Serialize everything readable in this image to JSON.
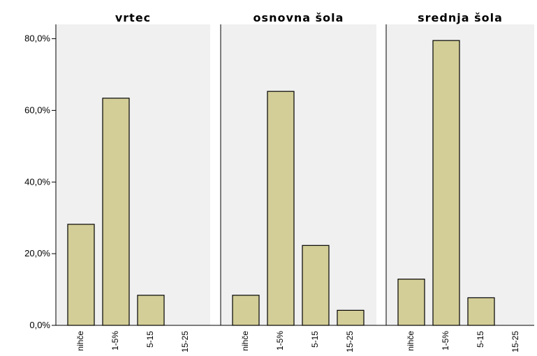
{
  "chart_data": {
    "type": "bar",
    "layout": "faceted",
    "categories": [
      "nihče",
      "1-5%",
      "5-15",
      "15-25"
    ],
    "y_tick_labels": [
      "0,0%",
      "20,0%",
      "40,0%",
      "60,0%",
      "80,0%"
    ],
    "y_ticks": [
      0,
      20,
      40,
      60,
      80
    ],
    "ylim": [
      0,
      84
    ],
    "grid": false,
    "panels": [
      {
        "title": "vrtec",
        "values": [
          28.2,
          63.4,
          8.4,
          0.0
        ]
      },
      {
        "title": "osnovna šola",
        "values": [
          8.4,
          65.3,
          22.3,
          4.2
        ]
      },
      {
        "title": "srednja šola",
        "values": [
          12.9,
          79.5,
          7.7,
          0.0
        ]
      }
    ],
    "colors": {
      "bar_fill": "#d3ce97",
      "panel_background": "#f0f0f0"
    }
  }
}
